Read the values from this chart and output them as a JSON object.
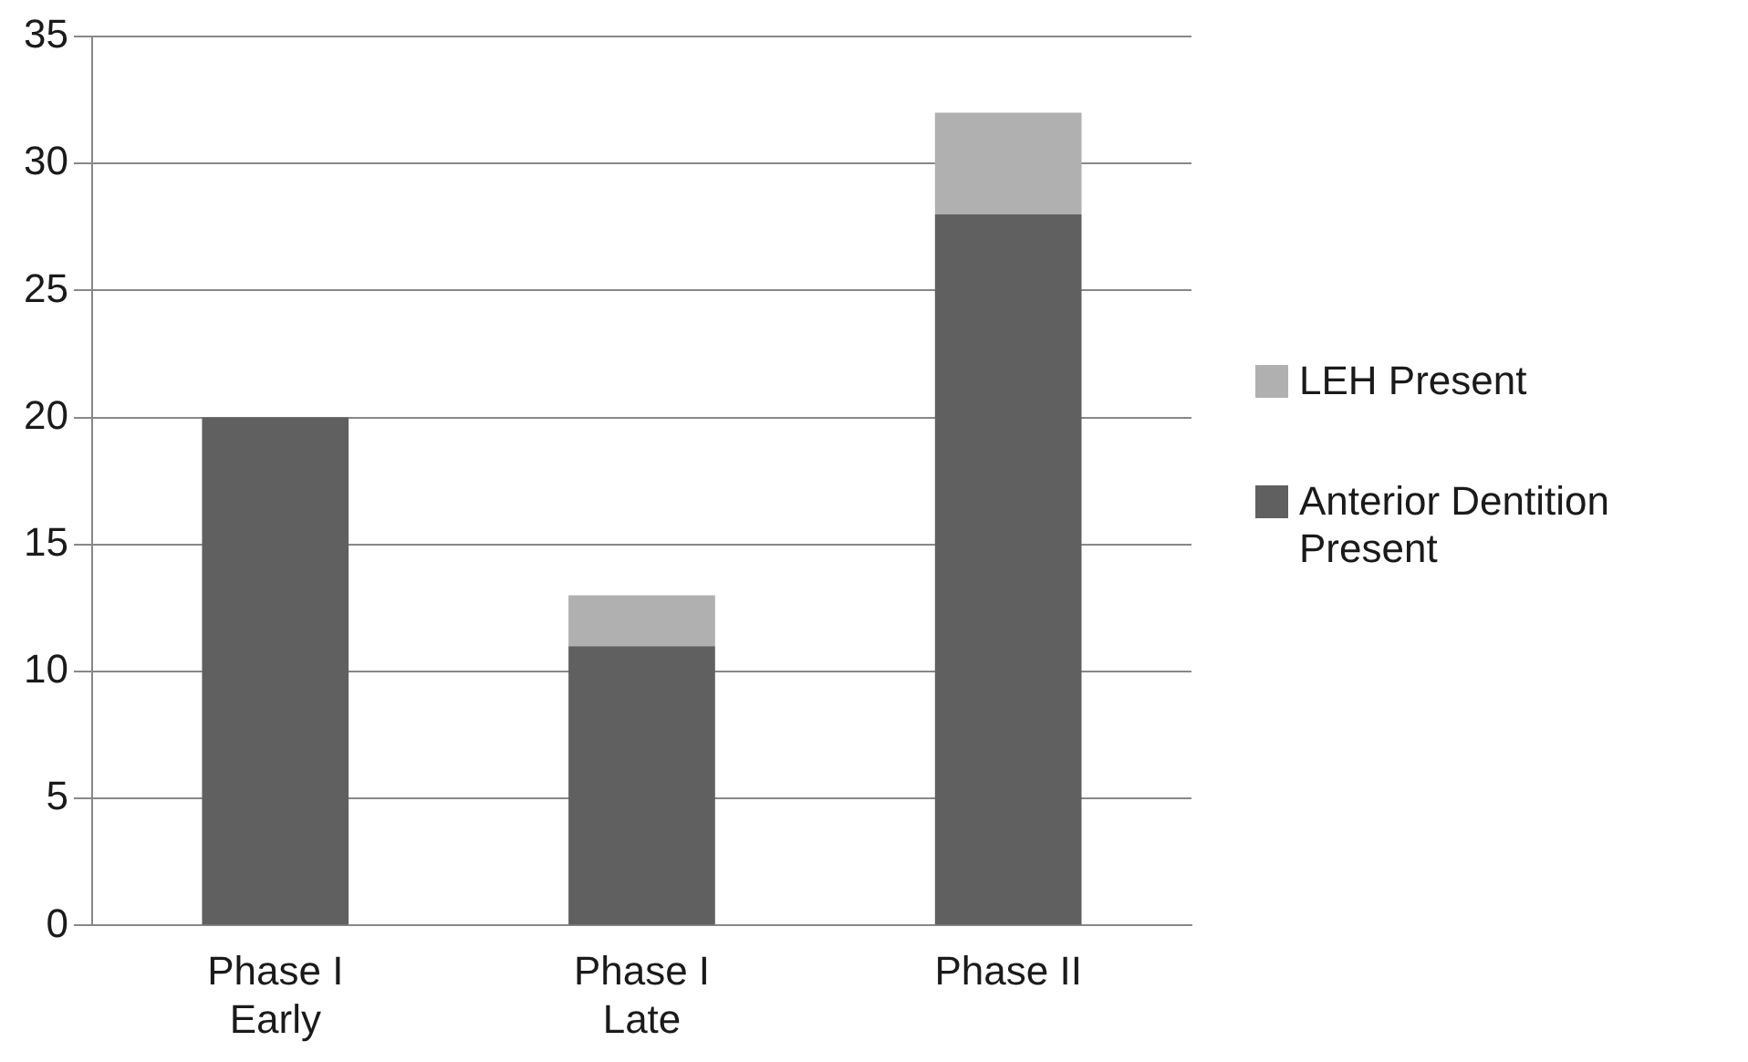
{
  "chart_data": {
    "type": "bar",
    "stacked": true,
    "categories": [
      "Phase I Early",
      "Phase I Late",
      "Phase II"
    ],
    "series": [
      {
        "name": "Anterior Dentition Present",
        "color": "#606060",
        "values": [
          20,
          11,
          28
        ]
      },
      {
        "name": "LEH Present",
        "color": "#b0b0b0",
        "values": [
          0,
          2,
          4
        ]
      }
    ],
    "ylim": [
      0,
      35
    ],
    "yticks": [
      0,
      5,
      10,
      15,
      20,
      25,
      30,
      35
    ],
    "grid": "y",
    "legend": "right"
  }
}
